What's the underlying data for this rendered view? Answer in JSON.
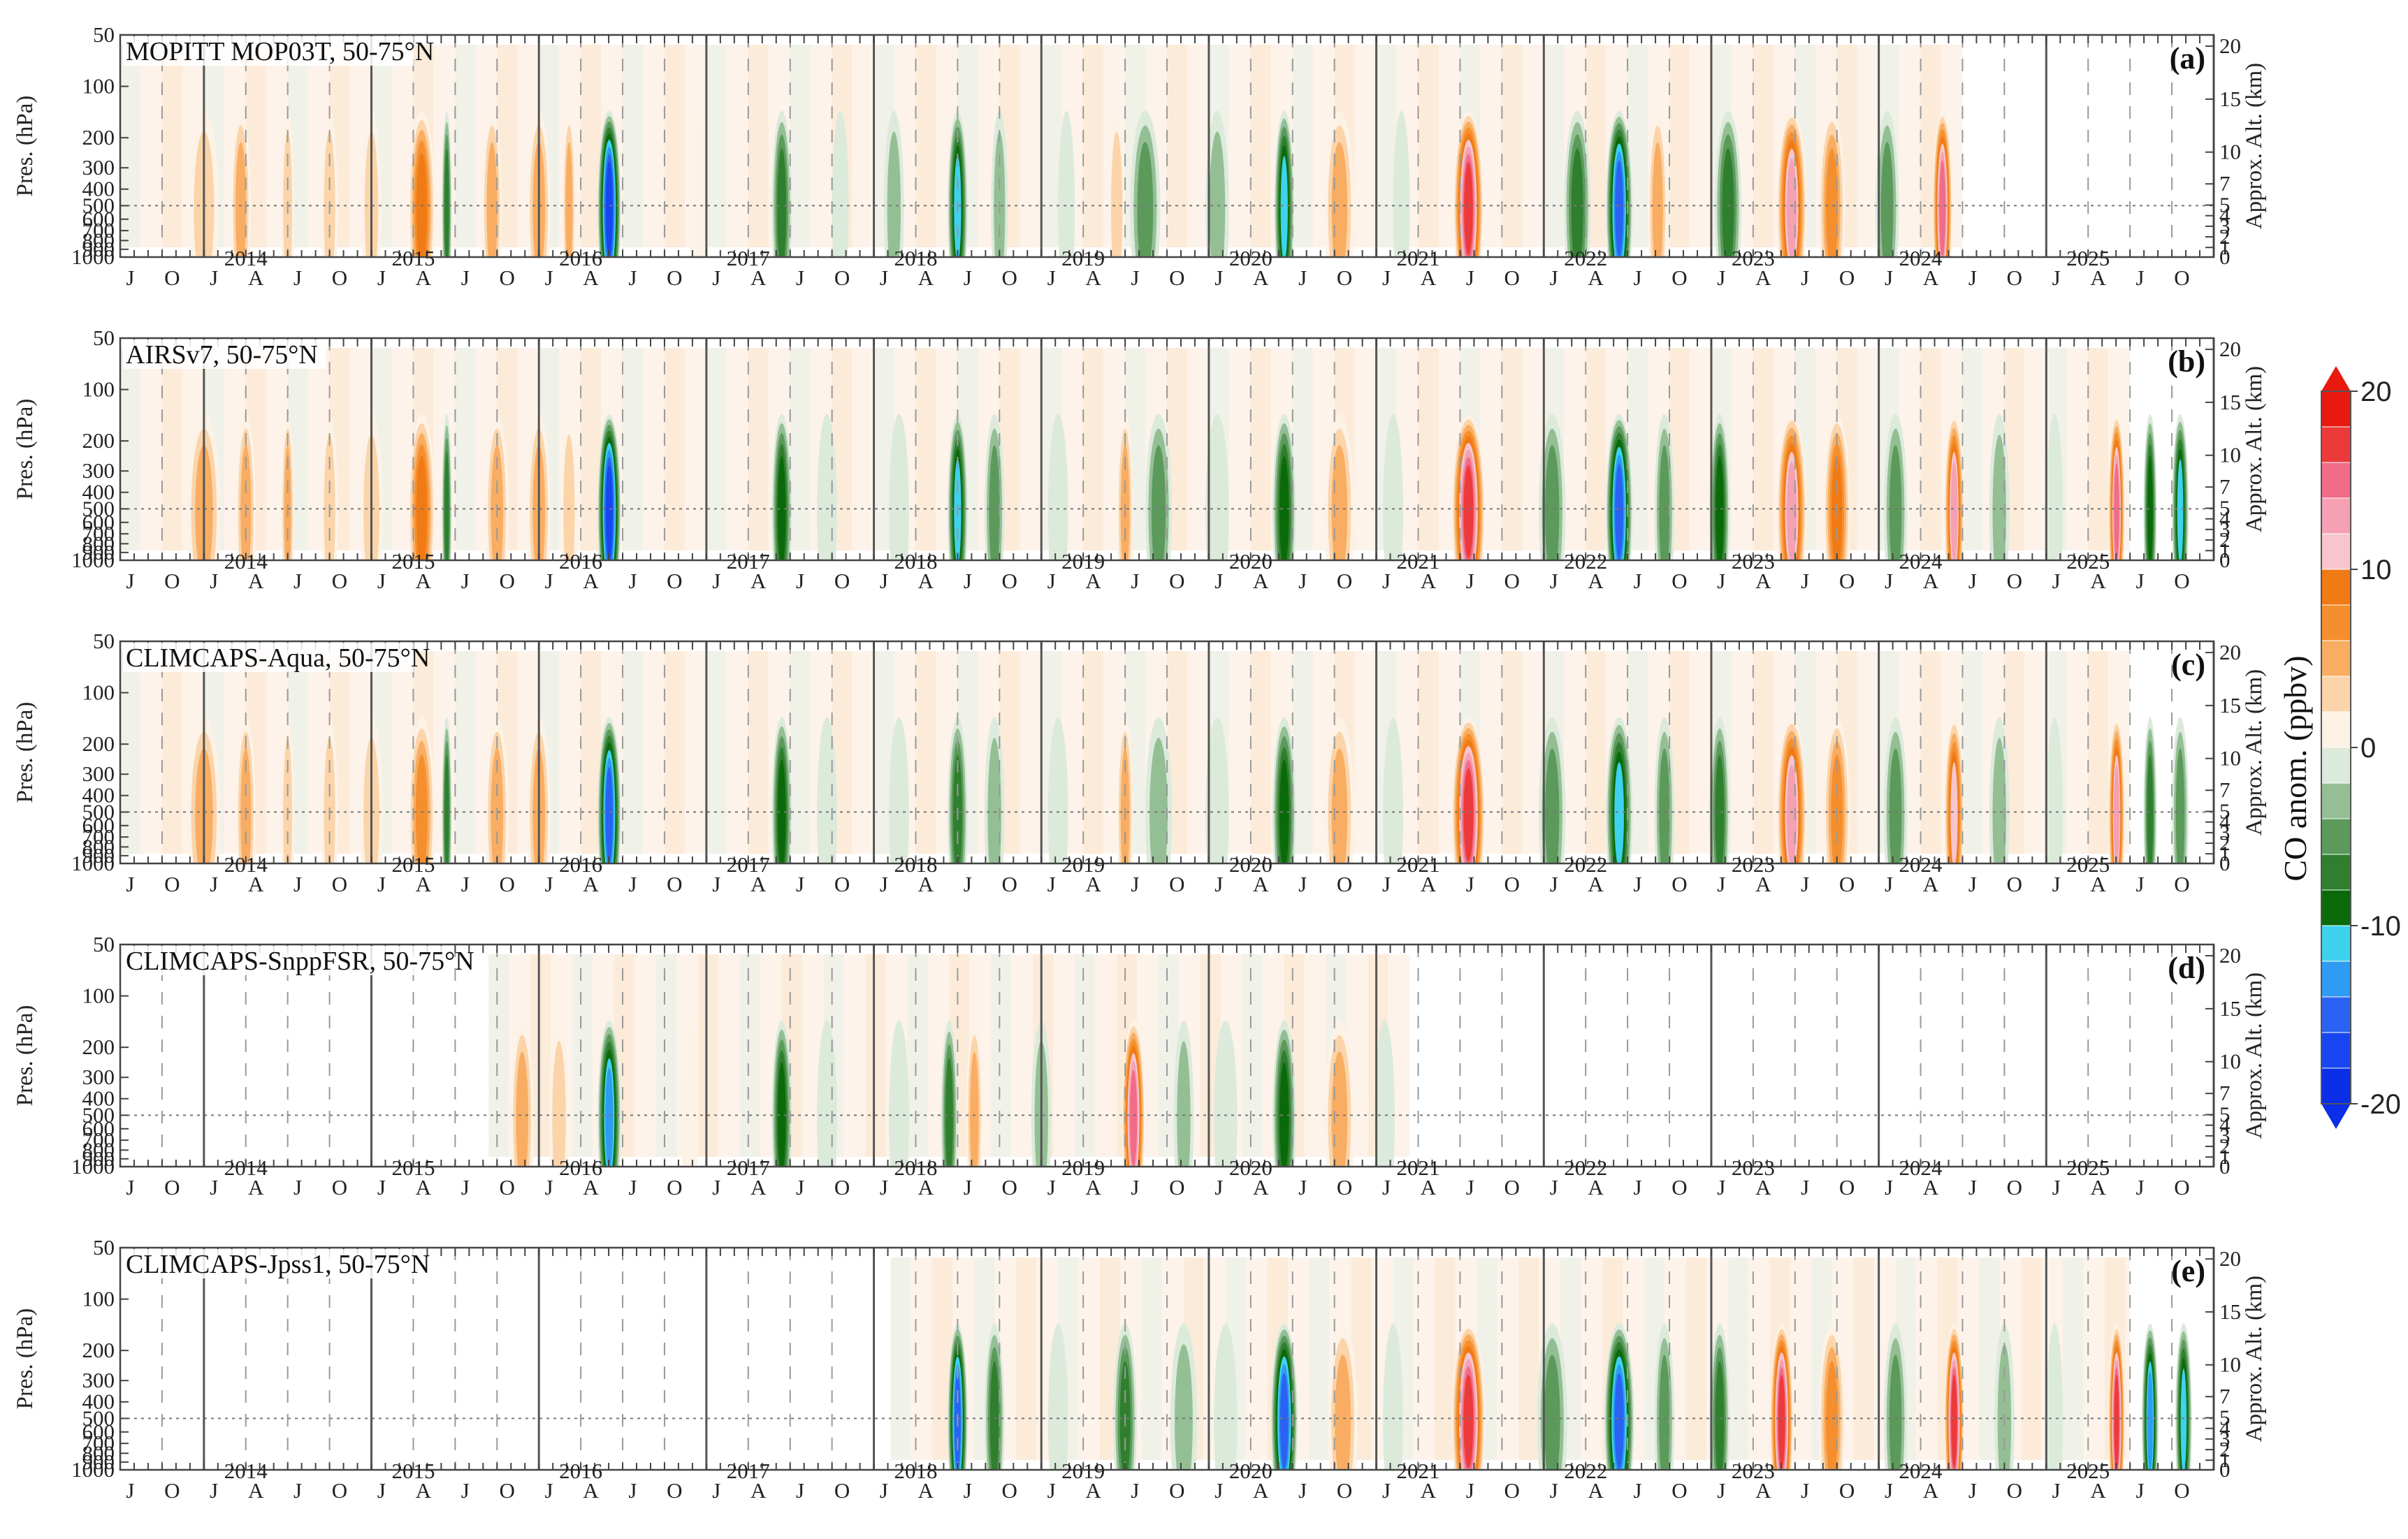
{
  "chart_data": {
    "type": "heatmap",
    "variable": "CO anom. (ppbv)",
    "time_range": [
      "2013-07",
      "2025-12"
    ],
    "years": [
      "2014",
      "2015",
      "2016",
      "2017",
      "2018",
      "2019",
      "2020",
      "2021",
      "2022",
      "2023",
      "2024",
      "2025"
    ],
    "season_ticks": [
      "J",
      "A",
      "J",
      "O"
    ],
    "pressure_axis": {
      "label": "Pres. (hPa)",
      "ticks": [
        "50",
        "100",
        "200",
        "300",
        "400",
        "500",
        "600",
        "700",
        "800",
        "900",
        "1000"
      ],
      "range": [
        1000,
        50
      ],
      "reference_level": 500
    },
    "altitude_axis": {
      "label": "Approx. Alt. (km)",
      "ticks": [
        "0",
        "1",
        "2",
        "3",
        "4",
        "5",
        "7",
        "10",
        "15",
        "20"
      ]
    },
    "colorbar": {
      "title": "CO anom. (ppbv)",
      "ticks": [
        "20",
        "10",
        "0",
        "-10",
        "-20"
      ],
      "range": [
        -20,
        20
      ],
      "levels": [
        {
          "lo": -20,
          "hi": -18,
          "color": "#0b2ee8"
        },
        {
          "lo": -18,
          "hi": -16,
          "color": "#1746f0"
        },
        {
          "lo": -16,
          "hi": -14,
          "color": "#2a63f3"
        },
        {
          "lo": -14,
          "hi": -12,
          "color": "#2f9bf2"
        },
        {
          "lo": -12,
          "hi": -10,
          "color": "#3ed2ef"
        },
        {
          "lo": -10,
          "hi": -8,
          "color": "#0a6a0a"
        },
        {
          "lo": -8,
          "hi": -6,
          "color": "#2f7f2f"
        },
        {
          "lo": -6,
          "hi": -4,
          "color": "#5b9a5b"
        },
        {
          "lo": -4,
          "hi": -2,
          "color": "#94bf94"
        },
        {
          "lo": -2,
          "hi": 0,
          "color": "#dceadc"
        },
        {
          "lo": 0,
          "hi": 2,
          "color": "#fdf2e6"
        },
        {
          "lo": 2,
          "hi": 4,
          "color": "#fbd4a9"
        },
        {
          "lo": 4,
          "hi": 6,
          "color": "#f9ad62"
        },
        {
          "lo": 6,
          "hi": 8,
          "color": "#f58f2e"
        },
        {
          "lo": 8,
          "hi": 10,
          "color": "#f07a14"
        },
        {
          "lo": 10,
          "hi": 12,
          "color": "#f8c5cf"
        },
        {
          "lo": 12,
          "hi": 14,
          "color": "#f5a0b3"
        },
        {
          "lo": 14,
          "hi": 16,
          "color": "#f06c88"
        },
        {
          "lo": 16,
          "hi": 18,
          "color": "#ec3a3a"
        },
        {
          "lo": 18,
          "hi": 20,
          "color": "#e81a10"
        }
      ]
    },
    "panels": [
      {
        "id": "a",
        "letter": "(a)",
        "title": "MOPITT MOP03T, 50-75°N",
        "data_start": 2013.5,
        "data_end": 2024.5,
        "anomalies": [
          {
            "t": 2014.0,
            "w": 0.09,
            "v": 5
          },
          {
            "t": 2014.22,
            "w": 0.06,
            "v": 6
          },
          {
            "t": 2014.5,
            "w": 0.04,
            "v": 5
          },
          {
            "t": 2014.75,
            "w": 0.05,
            "v": 4
          },
          {
            "t": 2015.0,
            "w": 0.06,
            "v": 5
          },
          {
            "t": 2015.3,
            "w": 0.08,
            "v": 11
          },
          {
            "t": 2015.45,
            "w": 0.03,
            "v": -9
          },
          {
            "t": 2015.72,
            "w": 0.06,
            "v": 6
          },
          {
            "t": 2016.0,
            "w": 0.07,
            "v": 6
          },
          {
            "t": 2016.18,
            "w": 0.04,
            "v": 6
          },
          {
            "t": 2016.42,
            "w": 0.07,
            "v": -18
          },
          {
            "t": 2016.95,
            "w": 0.05,
            "v": 2
          },
          {
            "t": 2017.45,
            "w": 0.06,
            "v": -9
          },
          {
            "t": 2017.8,
            "w": 0.05,
            "v": -3
          },
          {
            "t": 2018.12,
            "w": 0.06,
            "v": -4
          },
          {
            "t": 2018.5,
            "w": 0.06,
            "v": -12
          },
          {
            "t": 2018.75,
            "w": 0.05,
            "v": -4
          },
          {
            "t": 2019.15,
            "w": 0.05,
            "v": -3
          },
          {
            "t": 2019.45,
            "w": 0.05,
            "v": 5
          },
          {
            "t": 2019.62,
            "w": 0.09,
            "v": -6
          },
          {
            "t": 2020.05,
            "w": 0.07,
            "v": -4
          },
          {
            "t": 2020.45,
            "w": 0.06,
            "v": -13
          },
          {
            "t": 2020.78,
            "w": 0.09,
            "v": 7
          },
          {
            "t": 2021.15,
            "w": 0.05,
            "v": -2
          },
          {
            "t": 2021.55,
            "w": 0.09,
            "v": 19
          },
          {
            "t": 2022.2,
            "w": 0.08,
            "v": -8
          },
          {
            "t": 2022.45,
            "w": 0.08,
            "v": -16
          },
          {
            "t": 2022.68,
            "w": 0.06,
            "v": 6
          },
          {
            "t": 2023.1,
            "w": 0.08,
            "v": -8
          },
          {
            "t": 2023.48,
            "w": 0.09,
            "v": 14
          },
          {
            "t": 2023.72,
            "w": 0.08,
            "v": 9
          },
          {
            "t": 2024.05,
            "w": 0.07,
            "v": -7
          },
          {
            "t": 2024.38,
            "w": 0.06,
            "v": 17
          }
        ]
      },
      {
        "id": "b",
        "letter": "(b)",
        "title": "AIRSv7, 50-75°N",
        "data_start": 2013.5,
        "data_end": 2025.5,
        "anomalies": [
          {
            "t": 2014.0,
            "w": 0.1,
            "v": 6
          },
          {
            "t": 2014.25,
            "w": 0.06,
            "v": 6
          },
          {
            "t": 2014.5,
            "w": 0.04,
            "v": 6
          },
          {
            "t": 2014.75,
            "w": 0.05,
            "v": 5
          },
          {
            "t": 2015.0,
            "w": 0.07,
            "v": 5
          },
          {
            "t": 2015.3,
            "w": 0.08,
            "v": 10
          },
          {
            "t": 2015.45,
            "w": 0.03,
            "v": -9
          },
          {
            "t": 2015.75,
            "w": 0.07,
            "v": 6
          },
          {
            "t": 2016.0,
            "w": 0.07,
            "v": 6
          },
          {
            "t": 2016.18,
            "w": 0.05,
            "v": 5
          },
          {
            "t": 2016.42,
            "w": 0.07,
            "v": -18
          },
          {
            "t": 2017.45,
            "w": 0.06,
            "v": -11
          },
          {
            "t": 2017.72,
            "w": 0.06,
            "v": -3
          },
          {
            "t": 2018.15,
            "w": 0.06,
            "v": -3
          },
          {
            "t": 2018.5,
            "w": 0.06,
            "v": -12
          },
          {
            "t": 2018.72,
            "w": 0.06,
            "v": -6
          },
          {
            "t": 2019.1,
            "w": 0.06,
            "v": -3
          },
          {
            "t": 2019.5,
            "w": 0.05,
            "v": 7
          },
          {
            "t": 2019.7,
            "w": 0.08,
            "v": -6
          },
          {
            "t": 2020.05,
            "w": 0.07,
            "v": -3
          },
          {
            "t": 2020.45,
            "w": 0.07,
            "v": -10
          },
          {
            "t": 2020.78,
            "w": 0.09,
            "v": 7
          },
          {
            "t": 2021.1,
            "w": 0.06,
            "v": -3
          },
          {
            "t": 2021.55,
            "w": 0.1,
            "v": 19
          },
          {
            "t": 2022.05,
            "w": 0.08,
            "v": -6
          },
          {
            "t": 2022.45,
            "w": 0.08,
            "v": -16
          },
          {
            "t": 2022.72,
            "w": 0.06,
            "v": -7
          },
          {
            "t": 2023.05,
            "w": 0.06,
            "v": -10
          },
          {
            "t": 2023.48,
            "w": 0.09,
            "v": 15
          },
          {
            "t": 2023.75,
            "w": 0.08,
            "v": 10
          },
          {
            "t": 2024.1,
            "w": 0.07,
            "v": -6
          },
          {
            "t": 2024.45,
            "w": 0.06,
            "v": 15
          },
          {
            "t": 2024.72,
            "w": 0.06,
            "v": -5
          },
          {
            "t": 2025.05,
            "w": 0.05,
            "v": -2
          },
          {
            "t": 2025.42,
            "w": 0.05,
            "v": 16
          },
          {
            "t": 2025.62,
            "w": 0.04,
            "v": -10
          },
          {
            "t": 2025.8,
            "w": 0.05,
            "v": -12
          }
        ]
      },
      {
        "id": "c",
        "letter": "(c)",
        "title": "CLIMCAPS-Aqua, 50-75°N",
        "data_start": 2013.5,
        "data_end": 2025.5,
        "anomalies": [
          {
            "t": 2014.0,
            "w": 0.1,
            "v": 6
          },
          {
            "t": 2014.25,
            "w": 0.06,
            "v": 6
          },
          {
            "t": 2014.5,
            "w": 0.04,
            "v": 5
          },
          {
            "t": 2014.75,
            "w": 0.05,
            "v": 5
          },
          {
            "t": 2015.0,
            "w": 0.07,
            "v": 5
          },
          {
            "t": 2015.3,
            "w": 0.08,
            "v": 9
          },
          {
            "t": 2015.45,
            "w": 0.03,
            "v": -8
          },
          {
            "t": 2015.75,
            "w": 0.07,
            "v": 6
          },
          {
            "t": 2016.0,
            "w": 0.07,
            "v": 6
          },
          {
            "t": 2016.42,
            "w": 0.07,
            "v": -16
          },
          {
            "t": 2017.45,
            "w": 0.06,
            "v": -10
          },
          {
            "t": 2017.72,
            "w": 0.06,
            "v": -3
          },
          {
            "t": 2018.15,
            "w": 0.06,
            "v": -3
          },
          {
            "t": 2018.5,
            "w": 0.06,
            "v": -9
          },
          {
            "t": 2018.72,
            "w": 0.06,
            "v": -5
          },
          {
            "t": 2019.1,
            "w": 0.06,
            "v": -3
          },
          {
            "t": 2019.5,
            "w": 0.05,
            "v": 7
          },
          {
            "t": 2019.7,
            "w": 0.08,
            "v": -5
          },
          {
            "t": 2020.05,
            "w": 0.07,
            "v": -3
          },
          {
            "t": 2020.45,
            "w": 0.07,
            "v": -10
          },
          {
            "t": 2020.78,
            "w": 0.09,
            "v": 7
          },
          {
            "t": 2021.1,
            "w": 0.06,
            "v": -3
          },
          {
            "t": 2021.55,
            "w": 0.1,
            "v": 18
          },
          {
            "t": 2022.05,
            "w": 0.08,
            "v": -6
          },
          {
            "t": 2022.45,
            "w": 0.08,
            "v": -13
          },
          {
            "t": 2022.72,
            "w": 0.06,
            "v": -7
          },
          {
            "t": 2023.05,
            "w": 0.06,
            "v": -8
          },
          {
            "t": 2023.48,
            "w": 0.09,
            "v": 15
          },
          {
            "t": 2023.75,
            "w": 0.08,
            "v": 8
          },
          {
            "t": 2024.1,
            "w": 0.07,
            "v": -6
          },
          {
            "t": 2024.45,
            "w": 0.06,
            "v": 13
          },
          {
            "t": 2024.72,
            "w": 0.06,
            "v": -4
          },
          {
            "t": 2025.05,
            "w": 0.05,
            "v": -2
          },
          {
            "t": 2025.42,
            "w": 0.05,
            "v": 15
          },
          {
            "t": 2025.62,
            "w": 0.04,
            "v": -9
          },
          {
            "t": 2025.8,
            "w": 0.05,
            "v": -6
          }
        ]
      },
      {
        "id": "d",
        "letter": "(d)",
        "title": "CLIMCAPS-SnppFSR, 50-75°N",
        "data_start": 2015.7,
        "data_end": 2021.2,
        "anomalies": [
          {
            "t": 2015.9,
            "w": 0.07,
            "v": 6
          },
          {
            "t": 2016.12,
            "w": 0.06,
            "v": 5
          },
          {
            "t": 2016.42,
            "w": 0.07,
            "v": -15
          },
          {
            "t": 2016.9,
            "w": 0.05,
            "v": 3
          },
          {
            "t": 2017.45,
            "w": 0.06,
            "v": -10
          },
          {
            "t": 2017.72,
            "w": 0.06,
            "v": -3
          },
          {
            "t": 2018.15,
            "w": 0.06,
            "v": -3
          },
          {
            "t": 2018.45,
            "w": 0.05,
            "v": -9
          },
          {
            "t": 2018.6,
            "w": 0.05,
            "v": 7
          },
          {
            "t": 2019.0,
            "w": 0.06,
            "v": -4
          },
          {
            "t": 2019.55,
            "w": 0.07,
            "v": 17
          },
          {
            "t": 2019.85,
            "w": 0.06,
            "v": -4
          },
          {
            "t": 2020.1,
            "w": 0.07,
            "v": -3
          },
          {
            "t": 2020.45,
            "w": 0.07,
            "v": -10
          },
          {
            "t": 2020.78,
            "w": 0.09,
            "v": 7
          },
          {
            "t": 2021.05,
            "w": 0.06,
            "v": -2
          }
        ]
      },
      {
        "id": "e",
        "letter": "(e)",
        "title": "CLIMCAPS-Jpss1, 50-75°N",
        "data_start": 2018.1,
        "data_end": 2025.5,
        "anomalies": [
          {
            "t": 2018.5,
            "w": 0.06,
            "v": -17
          },
          {
            "t": 2018.72,
            "w": 0.06,
            "v": -8
          },
          {
            "t": 2019.1,
            "w": 0.06,
            "v": -3
          },
          {
            "t": 2019.5,
            "w": 0.07,
            "v": -9
          },
          {
            "t": 2019.85,
            "w": 0.08,
            "v": -4
          },
          {
            "t": 2020.1,
            "w": 0.07,
            "v": -3
          },
          {
            "t": 2020.45,
            "w": 0.08,
            "v": -17
          },
          {
            "t": 2020.8,
            "w": 0.09,
            "v": 7
          },
          {
            "t": 2021.1,
            "w": 0.06,
            "v": -3
          },
          {
            "t": 2021.55,
            "w": 0.1,
            "v": 19
          },
          {
            "t": 2022.05,
            "w": 0.09,
            "v": -7
          },
          {
            "t": 2022.45,
            "w": 0.09,
            "v": -17
          },
          {
            "t": 2022.72,
            "w": 0.06,
            "v": -7
          },
          {
            "t": 2023.05,
            "w": 0.06,
            "v": -8
          },
          {
            "t": 2023.42,
            "w": 0.07,
            "v": 19
          },
          {
            "t": 2023.72,
            "w": 0.08,
            "v": 9
          },
          {
            "t": 2024.1,
            "w": 0.07,
            "v": -6
          },
          {
            "t": 2024.45,
            "w": 0.06,
            "v": 18
          },
          {
            "t": 2024.75,
            "w": 0.06,
            "v": -5
          },
          {
            "t": 2025.05,
            "w": 0.05,
            "v": -3
          },
          {
            "t": 2025.42,
            "w": 0.05,
            "v": 18
          },
          {
            "t": 2025.62,
            "w": 0.05,
            "v": -15
          },
          {
            "t": 2025.82,
            "w": 0.05,
            "v": -12
          }
        ]
      }
    ]
  }
}
